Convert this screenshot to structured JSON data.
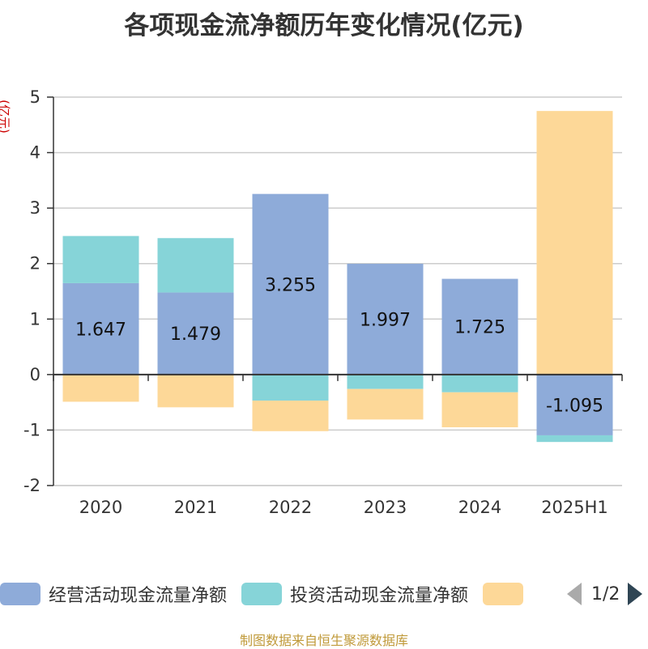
{
  "chart_data": {
    "type": "bar",
    "stacked": true,
    "title": "各项现金流净额历年变化情况(亿元)",
    "ylabel": "(亿元)",
    "categories": [
      "2020",
      "2021",
      "2022",
      "2023",
      "2024",
      "2025H1"
    ],
    "ylim": [
      -2,
      5
    ],
    "yticks": [
      5,
      4,
      3,
      2,
      1,
      0,
      -1,
      -2
    ],
    "grid": true,
    "series": [
      {
        "name": "经营活动现金流量净额",
        "color": "#8eabd9",
        "values": [
          1.647,
          1.479,
          3.255,
          1.997,
          1.725,
          -1.095
        ],
        "labels": [
          "1.647",
          "1.479",
          "3.255",
          "1.997",
          "1.725",
          "-1.095"
        ]
      },
      {
        "name": "投资活动现金流量净额",
        "color": "#86d4d8",
        "values": [
          0.85,
          0.98,
          -0.47,
          -0.26,
          -0.32,
          -0.12
        ]
      },
      {
        "name": "",
        "color": "#fdd898",
        "values": [
          -0.49,
          -0.59,
          -0.55,
          -0.55,
          -0.63,
          4.75
        ]
      }
    ]
  },
  "legend": {
    "page": "1/2"
  },
  "footer": {
    "source": "制图数据来自恒生聚源数据库"
  }
}
